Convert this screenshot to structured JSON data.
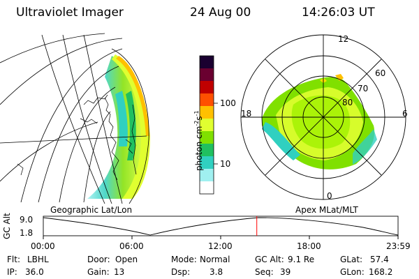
{
  "header": {
    "instrument": "Ultraviolet Imager",
    "date": "24 Aug 00",
    "time": "14:26:03 UT"
  },
  "left_panel": {
    "caption": "Geographic Lat/Lon"
  },
  "right_panel": {
    "caption": "Apex MLat/MLT",
    "mlt_labels": [
      "12",
      "18",
      "6",
      "0"
    ],
    "lat_labels": [
      "60",
      "70",
      "80"
    ]
  },
  "colorbar": {
    "unit_label": "photon cm",
    "unit_exp1": "-2",
    "unit_s": "s",
    "unit_exp2": "-1",
    "ticks": [
      "100",
      "10"
    ],
    "scale": "log",
    "colors": [
      "#1a0030",
      "#6a0030",
      "#c00000",
      "#ff5000",
      "#ffc000",
      "#e0ff30",
      "#80e000",
      "#20c060",
      "#30d0c0",
      "#a0f0f0",
      "#ffffff"
    ]
  },
  "timeline": {
    "axis_label": "GC Alt",
    "y_ticks": [
      "9.0",
      "1.8"
    ],
    "x_ticks": [
      "00:00",
      "06:00",
      "12:00",
      "18:00",
      "23:59"
    ],
    "marker_time": "14:26"
  },
  "footer": {
    "row1": [
      {
        "label": "Flt:",
        "value": "LBHL"
      },
      {
        "label": "Door:",
        "value": "Open"
      },
      {
        "label": "Mode:",
        "value": "Normal"
      },
      {
        "label": "GC Alt:",
        "value": "9.1 Re"
      },
      {
        "label": "GLat:",
        "value": "57.4"
      }
    ],
    "row2": [
      {
        "label": "IP:",
        "value": "36.0"
      },
      {
        "label": "Gain:",
        "value": "13"
      },
      {
        "label": "Dsp:",
        "value": "3.8"
      },
      {
        "label": "Seq:",
        "value": "39"
      },
      {
        "label": "GLon:",
        "value": "168.2"
      }
    ]
  }
}
